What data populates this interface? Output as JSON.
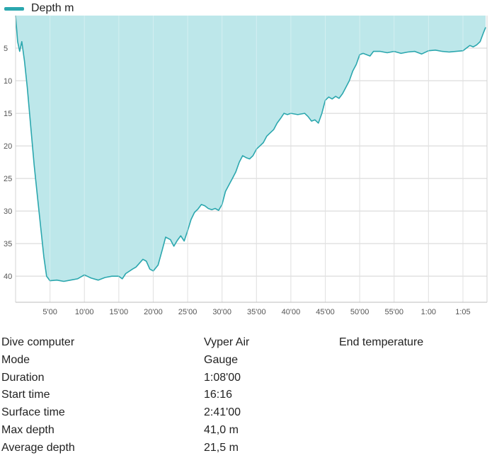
{
  "chart_data": {
    "type": "area",
    "legend": {
      "label": "Depth m",
      "position": "top-left"
    },
    "colors": {
      "line": "#2ba7ae",
      "fill": "#bde7ea",
      "grid": "#d3d3d3"
    },
    "x_unit": "minutes",
    "x_range": [
      0,
      68.5
    ],
    "y_range": [
      0,
      44
    ],
    "y_inverted": true,
    "grid": true,
    "x_ticks": [
      {
        "value": 5,
        "label": "5'00"
      },
      {
        "value": 10,
        "label": "10'00"
      },
      {
        "value": 15,
        "label": "15'00"
      },
      {
        "value": 20,
        "label": "20'00"
      },
      {
        "value": 25,
        "label": "25'00"
      },
      {
        "value": 30,
        "label": "30'00"
      },
      {
        "value": 35,
        "label": "35'00"
      },
      {
        "value": 40,
        "label": "40'00"
      },
      {
        "value": 45,
        "label": "45'00"
      },
      {
        "value": 50,
        "label": "50'00"
      },
      {
        "value": 55,
        "label": "55'00"
      },
      {
        "value": 60,
        "label": "1:00"
      },
      {
        "value": 65,
        "label": "1:05"
      }
    ],
    "y_ticks": [
      {
        "value": 5,
        "label": "5"
      },
      {
        "value": 10,
        "label": "10"
      },
      {
        "value": 15,
        "label": "15"
      },
      {
        "value": 20,
        "label": "20"
      },
      {
        "value": 25,
        "label": "25"
      },
      {
        "value": 30,
        "label": "30"
      },
      {
        "value": 35,
        "label": "35"
      },
      {
        "value": 40,
        "label": "40"
      }
    ],
    "series": [
      {
        "name": "Depth m",
        "x": [
          0,
          0.3,
          0.6,
          0.9,
          1.3,
          1.7,
          2.2,
          2.7,
          3.2,
          3.7,
          4.1,
          4.5,
          5,
          6,
          7,
          8,
          9,
          10,
          11,
          12,
          13,
          14,
          15,
          15.5,
          16,
          17,
          17.5,
          18,
          18.5,
          19,
          19.5,
          20,
          20.7,
          21.3,
          21.8,
          22.5,
          23,
          23.5,
          24,
          24.5,
          25,
          25.5,
          26,
          26.5,
          27,
          27.5,
          28,
          28.5,
          29,
          29.5,
          30,
          30.5,
          31,
          31.5,
          32,
          32.5,
          33,
          33.5,
          34,
          34.5,
          35,
          35.5,
          36,
          36.5,
          37,
          37.5,
          38,
          38.5,
          39,
          39.5,
          40,
          41,
          42,
          42.5,
          43,
          43.5,
          44,
          44.5,
          45,
          45.5,
          46,
          46.5,
          47,
          47.5,
          48,
          48.5,
          49,
          49.5,
          50,
          50.5,
          51,
          51.5,
          52,
          53,
          54,
          55,
          56,
          57,
          58,
          59,
          60,
          61,
          62,
          63,
          64,
          65,
          66,
          66.5,
          67,
          67.5,
          68,
          68.3
        ],
        "values": [
          0,
          4,
          5.5,
          4,
          7,
          11,
          17,
          23,
          28,
          33,
          37,
          40,
          40.7,
          40.6,
          40.8,
          40.6,
          40.4,
          39.8,
          40.3,
          40.6,
          40.2,
          40,
          40,
          40.4,
          39.6,
          38.9,
          38.6,
          38,
          37.4,
          37.7,
          38.9,
          39.2,
          38.3,
          36,
          34,
          34.4,
          35.4,
          34.5,
          33.8,
          34.6,
          33,
          31.3,
          30.2,
          29.7,
          29,
          29.2,
          29.6,
          29.8,
          29.6,
          29.9,
          29,
          27,
          26,
          25,
          24,
          22.5,
          21.5,
          21.8,
          22,
          21.5,
          20.5,
          20,
          19.5,
          18.5,
          18,
          17.5,
          16.5,
          15.8,
          15,
          15.2,
          15,
          15.2,
          15,
          15.5,
          16.2,
          16,
          16.5,
          15,
          13,
          12.5,
          12.8,
          12.4,
          12.7,
          12,
          11,
          10,
          8.5,
          7.5,
          6,
          5.8,
          6,
          6.2,
          5.5,
          5.5,
          5.7,
          5.5,
          5.8,
          5.6,
          5.5,
          5.9,
          5.4,
          5.3,
          5.5,
          5.6,
          5.5,
          5.4,
          4.6,
          4.8,
          4.5,
          4,
          2.6,
          1.8
        ]
      }
    ]
  },
  "info_table": [
    {
      "label": "Dive computer",
      "value": "Vyper Air",
      "extra": "End temperature"
    },
    {
      "label": "Mode",
      "value": "Gauge",
      "extra": ""
    },
    {
      "label": "Duration",
      "value": "1:08'00",
      "extra": ""
    },
    {
      "label": "Start time",
      "value": "16:16",
      "extra": ""
    },
    {
      "label": "Surface time",
      "value": "2:41'00",
      "extra": ""
    },
    {
      "label": "Max depth",
      "value": "41,0 m",
      "extra": ""
    },
    {
      "label": "Average depth",
      "value": "21,5 m",
      "extra": ""
    }
  ]
}
